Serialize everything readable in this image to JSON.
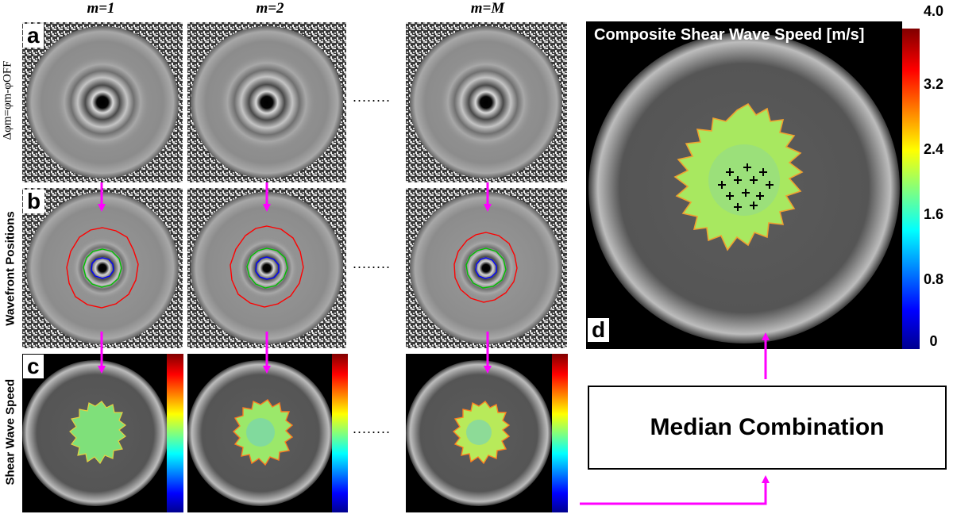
{
  "columns": [
    {
      "title": "m=1"
    },
    {
      "title": "m=2"
    },
    {
      "title": "m=M"
    }
  ],
  "row_labels": {
    "a": "Δφm=φm-φOFF",
    "b": "Wavefront Positions",
    "c": "Shear Wave Speed"
  },
  "panel_letters": {
    "a": "a",
    "b": "b",
    "c": "c",
    "d": "d"
  },
  "ellipsis": "........",
  "median_box": {
    "label": "Median Combination"
  },
  "composite": {
    "title": "Composite Shear Wave Speed [m/s]",
    "colorbar_ticks": [
      "4.0",
      "3.2",
      "2.4",
      "1.6",
      "0.8",
      "0"
    ]
  },
  "colors": {
    "arrow": "#ff00ff",
    "wavefront_inner": "#0000ff",
    "wavefront_mid": "#00c000",
    "wavefront_outer": "#ff0000",
    "speed_fill": "#7fe07a"
  }
}
